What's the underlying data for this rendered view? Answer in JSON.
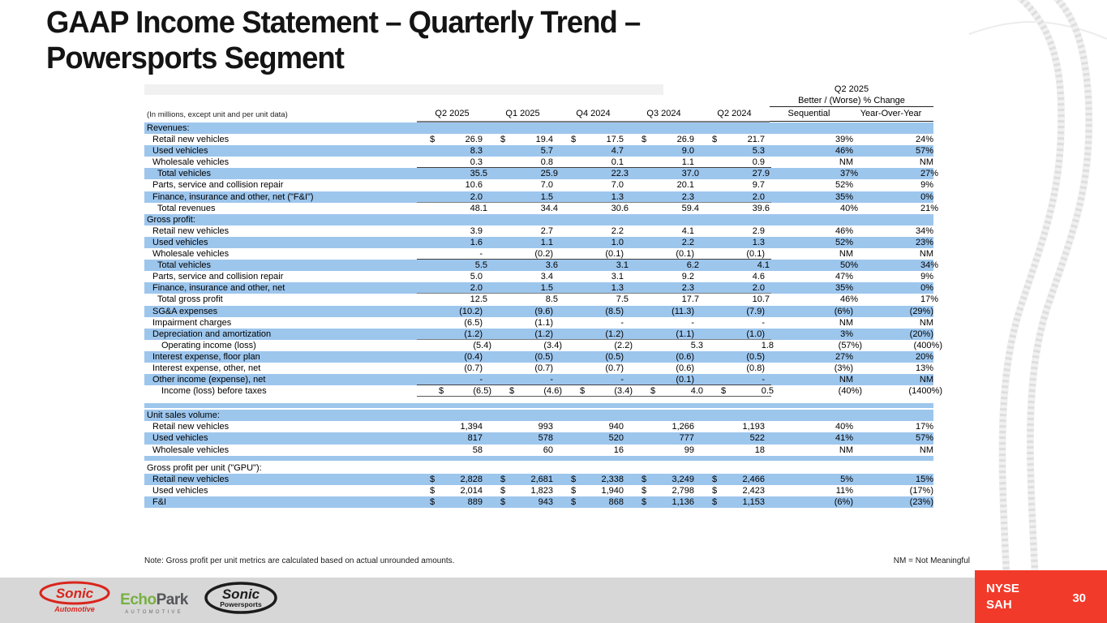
{
  "slide": {
    "title_line1": "GAAP Income Statement – Quarterly Trend –",
    "title_line2": "Powersports Segment",
    "note": "Note: Gross profit per unit metrics are calculated based on actual unrounded amounts.",
    "nm_legend": "NM = Not Meaningful",
    "page_number": "30",
    "ticker_line1": "NYSE",
    "ticker_line2": "SAH"
  },
  "colors": {
    "row_blue": "#9DC6ED",
    "footer_gray": "#D7D7D7",
    "badge_red": "#F23A2B",
    "sonic_red": "#D9251D",
    "echo_green": "#76B043",
    "echo_gray": "#54565A"
  },
  "logos": {
    "sonic_automotive_name": "Sonic",
    "sonic_automotive_sub": "Automotive",
    "echopark_name_green": "Echo",
    "echopark_name_gray": "Park",
    "echopark_sub": "AUTOMOTIVE",
    "sonic_powersports_name": "Sonic",
    "sonic_powersports_sub": "Powersports"
  },
  "table": {
    "units_note": "(In millions, except unit and per unit data)",
    "group_header": {
      "line1": "Q2 2025",
      "line2": "Better / (Worse) % Change"
    },
    "columns": [
      "Q2 2025",
      "Q1 2025",
      "Q4 2024",
      "Q3 2024",
      "Q2 2024"
    ],
    "pct_columns": [
      "Sequential",
      "Year-Over-Year"
    ],
    "rows": [
      {
        "t": "section",
        "bg": "b",
        "label": "Revenues:"
      },
      {
        "t": "item",
        "bg": "w",
        "ind": 1,
        "label": "Retail new vehicles",
        "dollar": true,
        "v": [
          "26.9",
          "19.4",
          "17.5",
          "26.9",
          "21.7"
        ],
        "seq": "39%",
        "yoy": "24%"
      },
      {
        "t": "item",
        "bg": "b",
        "ind": 1,
        "label": "Used vehicles",
        "v": [
          "8.3",
          "5.7",
          "4.7",
          "9.0",
          "5.3"
        ],
        "seq": "46%",
        "yoy": "57%"
      },
      {
        "t": "item",
        "bg": "w",
        "ind": 1,
        "label": "Wholesale vehicles",
        "v": [
          "0.3",
          "0.8",
          "0.1",
          "1.1",
          "0.9"
        ],
        "seq": "NM",
        "yoy": "NM",
        "rule": "thin"
      },
      {
        "t": "item",
        "bg": "b",
        "ind": 2,
        "label": "Total vehicles",
        "v": [
          "35.5",
          "25.9",
          "22.3",
          "37.0",
          "27.9"
        ],
        "seq": "37%",
        "yoy": "27%"
      },
      {
        "t": "item",
        "bg": "w",
        "ind": 1,
        "label": "Parts, service and collision repair",
        "v": [
          "10.6",
          "7.0",
          "7.0",
          "20.1",
          "9.7"
        ],
        "seq": "52%",
        "yoy": "9%"
      },
      {
        "t": "item",
        "bg": "b",
        "ind": 1,
        "label": "Finance, insurance and other, net (\"F&I\")",
        "v": [
          "2.0",
          "1.5",
          "1.3",
          "2.3",
          "2.0"
        ],
        "seq": "35%",
        "yoy": "0%",
        "rule": "thick"
      },
      {
        "t": "item",
        "bg": "w",
        "ind": 2,
        "label": "Total revenues",
        "v": [
          "48.1",
          "34.4",
          "30.6",
          "59.4",
          "39.6"
        ],
        "seq": "40%",
        "yoy": "21%"
      },
      {
        "t": "section",
        "bg": "b",
        "label": "Gross profit:"
      },
      {
        "t": "item",
        "bg": "w",
        "ind": 1,
        "label": "Retail new vehicles",
        "v": [
          "3.9",
          "2.7",
          "2.2",
          "4.1",
          "2.9"
        ],
        "seq": "46%",
        "yoy": "34%"
      },
      {
        "t": "item",
        "bg": "b",
        "ind": 1,
        "label": "Used vehicles",
        "v": [
          "1.6",
          "1.1",
          "1.0",
          "2.2",
          "1.3"
        ],
        "seq": "52%",
        "yoy": "23%"
      },
      {
        "t": "item",
        "bg": "w",
        "ind": 1,
        "label": "Wholesale vehicles",
        "v": [
          "-",
          "(0.2)",
          "(0.1)",
          "(0.1)",
          "(0.1)"
        ],
        "seq": "NM",
        "yoy": "NM",
        "rule": "thin"
      },
      {
        "t": "item",
        "bg": "b",
        "ind": 2,
        "label": "Total vehicles",
        "v": [
          "5.5",
          "3.6",
          "3.1",
          "6.2",
          "4.1"
        ],
        "seq": "50%",
        "yoy": "34%"
      },
      {
        "t": "item",
        "bg": "w",
        "ind": 1,
        "label": "Parts, service and collision repair",
        "v": [
          "5.0",
          "3.4",
          "3.1",
          "9.2",
          "4.6"
        ],
        "seq": "47%",
        "yoy": "9%"
      },
      {
        "t": "item",
        "bg": "b",
        "ind": 1,
        "label": "Finance, insurance and other, net",
        "v": [
          "2.0",
          "1.5",
          "1.3",
          "2.3",
          "2.0"
        ],
        "seq": "35%",
        "yoy": "0%",
        "rule": "thick"
      },
      {
        "t": "item",
        "bg": "w",
        "ind": 2,
        "label": "Total gross profit",
        "v": [
          "12.5",
          "8.5",
          "7.5",
          "17.7",
          "10.7"
        ],
        "seq": "46%",
        "yoy": "17%"
      },
      {
        "t": "item",
        "bg": "b",
        "ind": 1,
        "label": "SG&A expenses",
        "v": [
          "(10.2)",
          "(9.6)",
          "(8.5)",
          "(11.3)",
          "(7.9)"
        ],
        "seq": "(6%)",
        "yoy": "(29%)"
      },
      {
        "t": "item",
        "bg": "w",
        "ind": 1,
        "label": "Impairment charges",
        "v": [
          "(6.5)",
          "(1.1)",
          "-",
          "-",
          "-"
        ],
        "seq": "NM",
        "yoy": "NM"
      },
      {
        "t": "item",
        "bg": "b",
        "ind": 1,
        "label": "Depreciation and amortization",
        "v": [
          "(1.2)",
          "(1.2)",
          "(1.2)",
          "(1.1)",
          "(1.0)"
        ],
        "seq": "3%",
        "yoy": "(20%)",
        "rule": "thick"
      },
      {
        "t": "item",
        "bg": "w",
        "ind": 3,
        "label": "Operating income (loss)",
        "v": [
          "(5.4)",
          "(3.4)",
          "(2.2)",
          "5.3",
          "1.8"
        ],
        "seq": "(57%)",
        "yoy": "(400%)"
      },
      {
        "t": "item",
        "bg": "b",
        "ind": 1,
        "label": "Interest expense, floor plan",
        "v": [
          "(0.4)",
          "(0.5)",
          "(0.5)",
          "(0.6)",
          "(0.5)"
        ],
        "seq": "27%",
        "yoy": "20%"
      },
      {
        "t": "item",
        "bg": "w",
        "ind": 1,
        "label": "Interest expense, other, net",
        "v": [
          "(0.7)",
          "(0.7)",
          "(0.7)",
          "(0.6)",
          "(0.8)"
        ],
        "seq": "(3%)",
        "yoy": "13%"
      },
      {
        "t": "item",
        "bg": "b",
        "ind": 1,
        "label": "Other income (expense), net",
        "v": [
          "-",
          "-",
          "-",
          "(0.1)",
          "-"
        ],
        "seq": "NM",
        "yoy": "NM",
        "rule": "thin"
      },
      {
        "t": "item",
        "bg": "w",
        "ind": 3,
        "label": "Income (loss) before taxes",
        "dollar": true,
        "v": [
          "(6.5)",
          "(4.6)",
          "(3.4)",
          "4.0",
          "0.5"
        ],
        "seq": "(40%)",
        "yoy": "(1400%)",
        "rule": "dbl"
      },
      {
        "t": "gap"
      },
      {
        "t": "sep"
      },
      {
        "t": "gap2"
      },
      {
        "t": "section",
        "bg": "b",
        "label": "Unit sales volume:"
      },
      {
        "t": "item",
        "bg": "w",
        "ind": 1,
        "label": "Retail new vehicles",
        "v": [
          "1,394",
          "993",
          "940",
          "1,266",
          "1,193"
        ],
        "seq": "40%",
        "yoy": "17%"
      },
      {
        "t": "item",
        "bg": "b",
        "ind": 1,
        "label": "Used vehicles",
        "v": [
          "817",
          "578",
          "520",
          "777",
          "522"
        ],
        "seq": "41%",
        "yoy": "57%"
      },
      {
        "t": "item",
        "bg": "w",
        "ind": 1,
        "label": "Wholesale vehicles",
        "v": [
          "58",
          "60",
          "16",
          "99",
          "18"
        ],
        "seq": "NM",
        "yoy": "NM"
      },
      {
        "t": "sep"
      },
      {
        "t": "gap2"
      },
      {
        "t": "section",
        "bg": "w",
        "label": "Gross profit per unit (\"GPU\"):"
      },
      {
        "t": "item",
        "bg": "b",
        "ind": 1,
        "label": "Retail new vehicles",
        "dollar": true,
        "v": [
          "2,828",
          "2,681",
          "2,338",
          "3,249",
          "2,466"
        ],
        "seq": "5%",
        "yoy": "15%"
      },
      {
        "t": "item",
        "bg": "w",
        "ind": 1,
        "label": "Used vehicles",
        "dollar": true,
        "v": [
          "2,014",
          "1,823",
          "1,940",
          "2,798",
          "2,423"
        ],
        "seq": "11%",
        "yoy": "(17%)"
      },
      {
        "t": "item",
        "bg": "b",
        "ind": 1,
        "label": "F&I",
        "dollar": true,
        "v": [
          "889",
          "943",
          "868",
          "1,136",
          "1,153"
        ],
        "seq": "(6%)",
        "yoy": "(23%)"
      }
    ]
  }
}
